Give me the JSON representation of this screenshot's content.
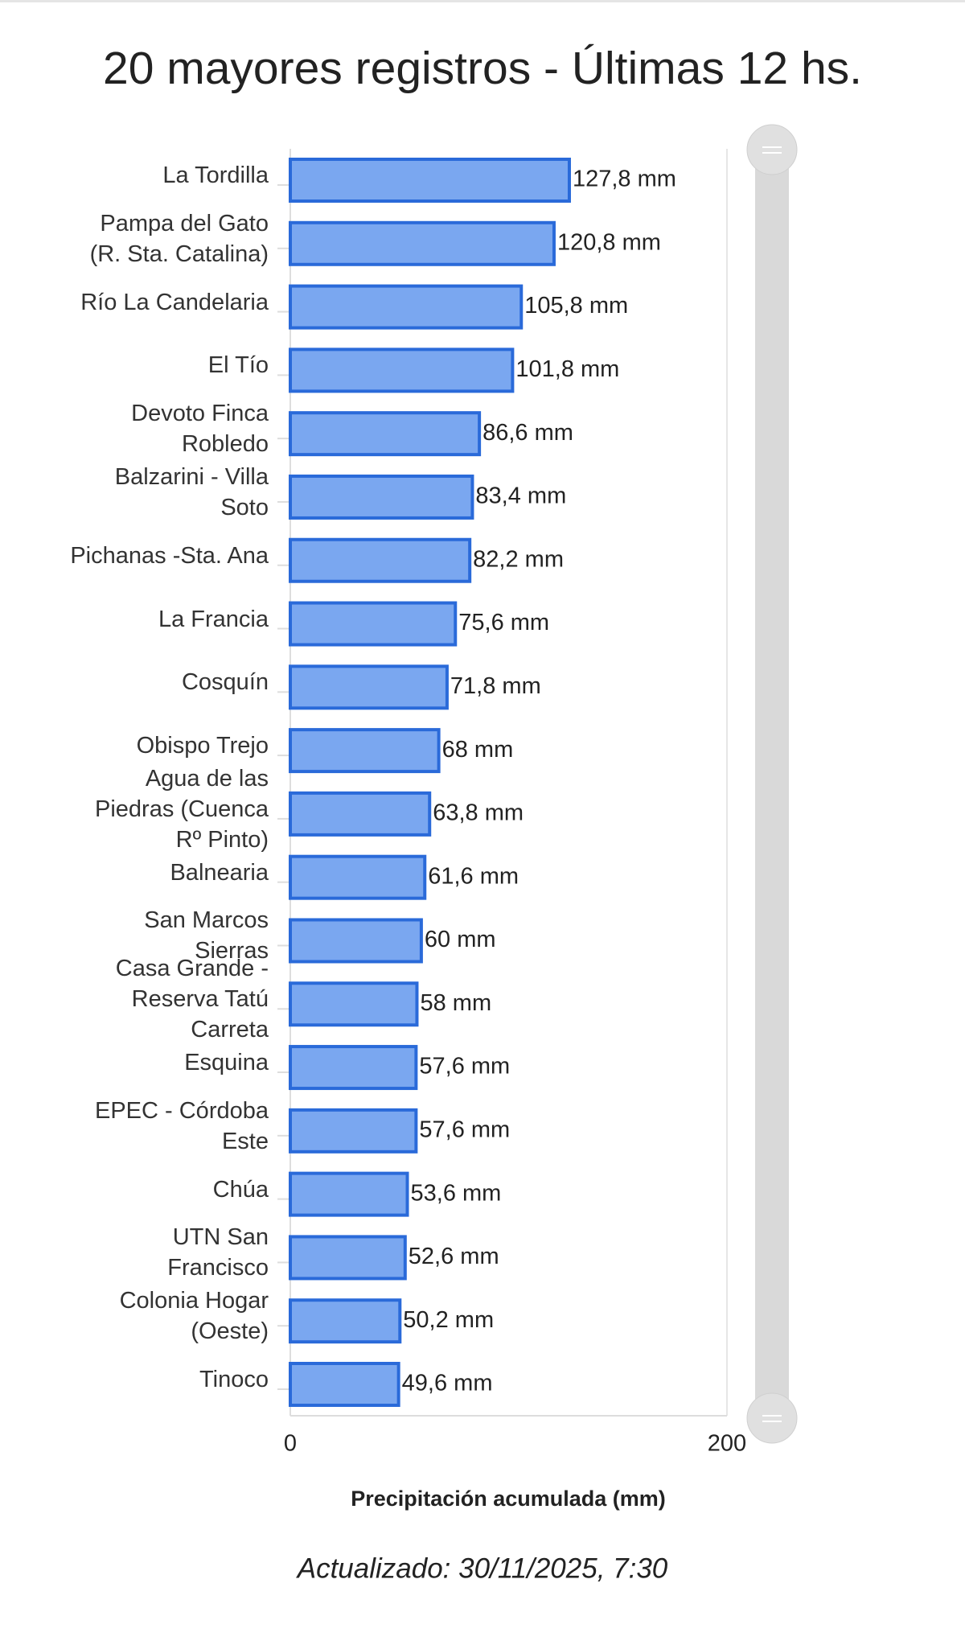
{
  "chart_data": {
    "type": "barh",
    "title": "20 mayores registros - Últimas 12 hs.",
    "subtitle": "Actualizado: 30/11/2025, 7:30",
    "x_label": "Precipitación acumulada (mm)",
    "categories": [
      "La Tordilla",
      "Pampa del Gato (R. Sta. Catalina)",
      "Río La Candelaria",
      "El Tío",
      "Devoto Finca Robledo",
      "Balzarini - Villa Soto",
      "Pichanas -Sta. Ana",
      "La Francia",
      "Cosquín",
      "Obispo Trejo",
      "Agua de las Piedras (Cuenca Rº Pinto)",
      "Balnearia",
      "San Marcos Sierras",
      "Casa Grande - Reserva Tatú Carreta",
      "Esquina",
      "EPEC - Córdoba Este",
      "Chúa",
      "UTN San Francisco",
      "Colonia Hogar (Oeste)",
      "Tinoco"
    ],
    "values": [
      127.8,
      120.8,
      105.8,
      101.8,
      86.6,
      83.4,
      82.2,
      75.6,
      71.8,
      68,
      63.8,
      61.6,
      60,
      58,
      57.6,
      57.6,
      53.6,
      52.6,
      50.2,
      49.6
    ],
    "value_labels": [
      "127,8 mm",
      "120,8 mm",
      "105,8 mm",
      "101,8 mm",
      "86,6 mm",
      "83,4 mm",
      "82,2 mm",
      "75,6 mm",
      "71,8 mm",
      "68 mm",
      "63,8 mm",
      "61,6 mm",
      "60 mm",
      "58 mm",
      "57,6 mm",
      "57,6 mm",
      "53,6 mm",
      "52,6 mm",
      "50,2 mm",
      "49,6 mm"
    ],
    "color": "#7aa7f0",
    "edge_color": "#2a6ad9",
    "xlim": [
      0,
      200
    ],
    "xticks": [
      0,
      200
    ],
    "grid": true
  }
}
